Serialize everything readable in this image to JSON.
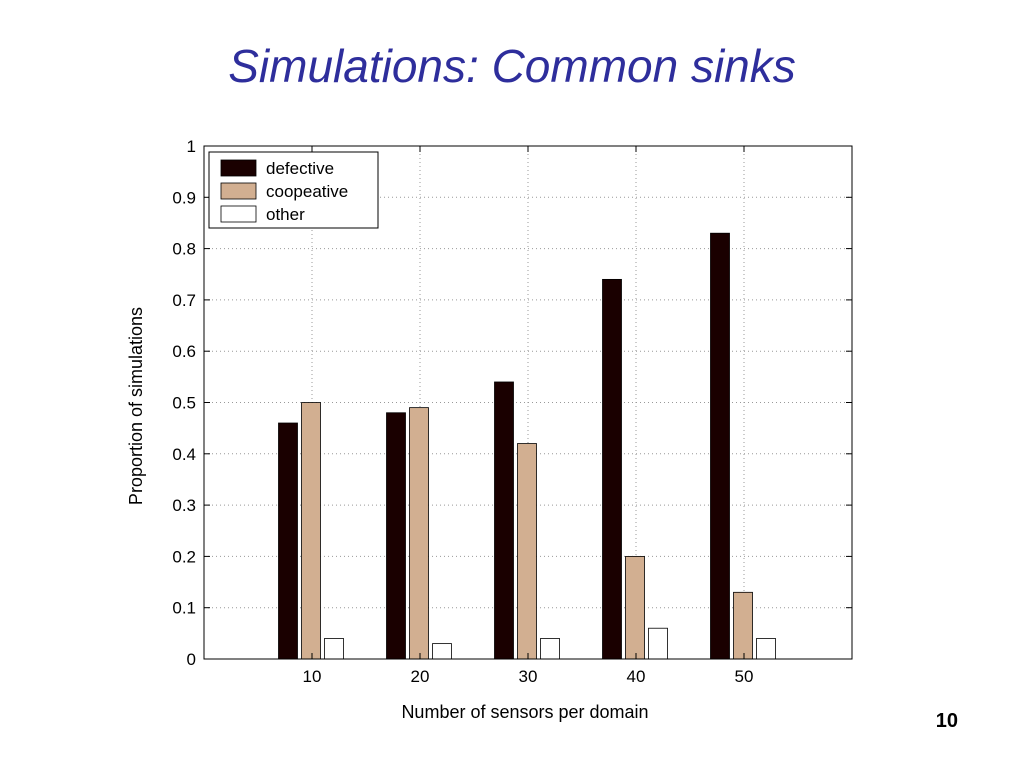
{
  "slide": {
    "title": "Simulations: Common sinks",
    "page_number": "10"
  },
  "chart_data": {
    "type": "bar",
    "title": "",
    "xlabel": "Number of sensors per domain",
    "ylabel": "Proportion of simulations",
    "categories": [
      "10",
      "20",
      "30",
      "40",
      "50"
    ],
    "ylim": [
      0,
      1
    ],
    "y_ticks": [
      "0",
      "0.1",
      "0.2",
      "0.3",
      "0.4",
      "0.5",
      "0.6",
      "0.7",
      "0.8",
      "0.9",
      "1"
    ],
    "grid": true,
    "legend_position": "top-left",
    "series": [
      {
        "name": "defective",
        "color": "#1a0000",
        "values": [
          0.46,
          0.48,
          0.54,
          0.74,
          0.83
        ]
      },
      {
        "name": "coopeative",
        "color": "#d2af91",
        "values": [
          0.5,
          0.49,
          0.42,
          0.2,
          0.13
        ]
      },
      {
        "name": "other",
        "color": "#ffffff",
        "values": [
          0.04,
          0.03,
          0.04,
          0.06,
          0.04
        ]
      }
    ]
  }
}
